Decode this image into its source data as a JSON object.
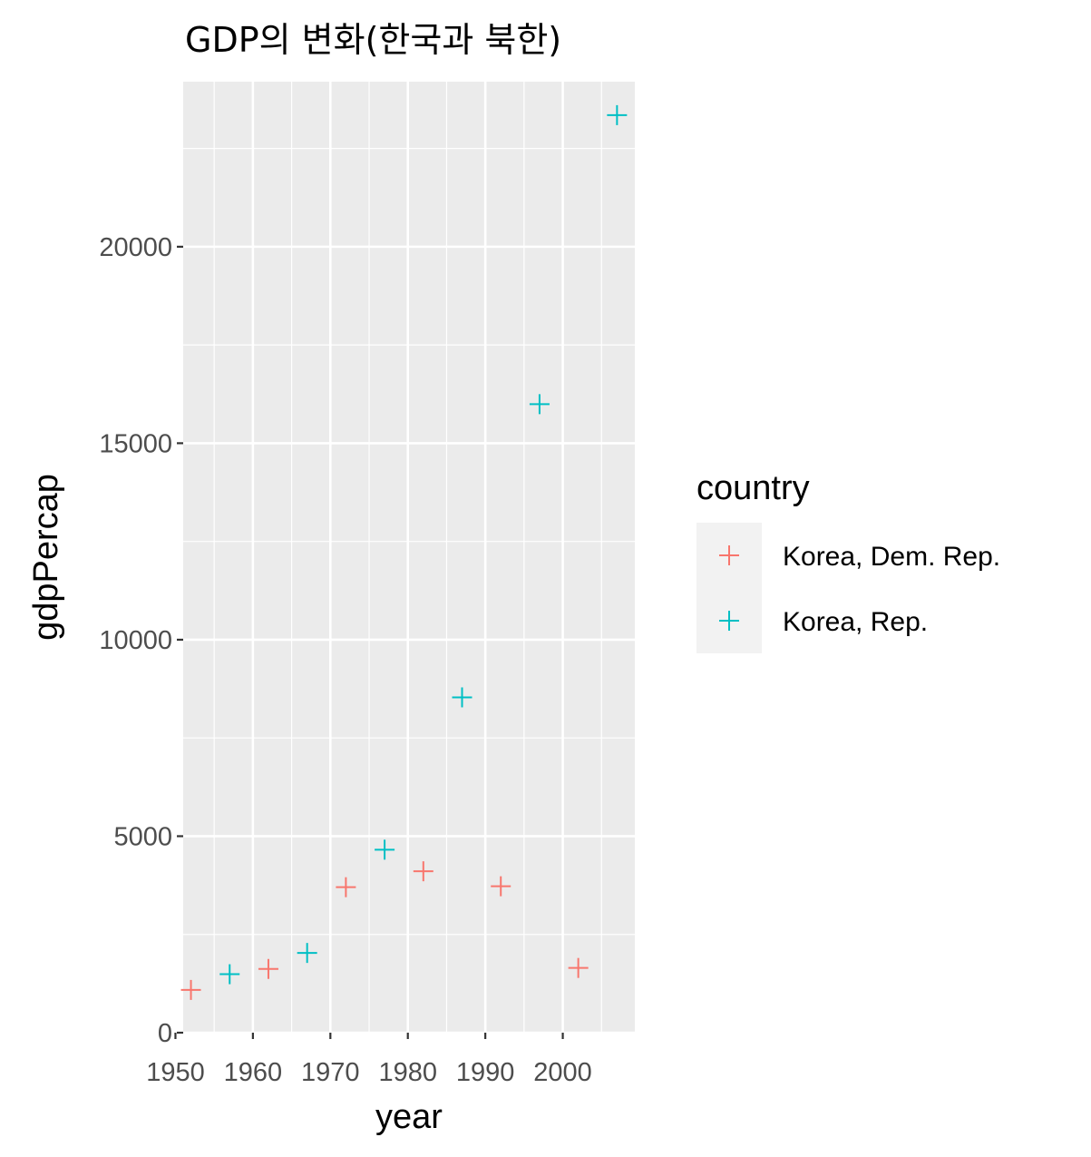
{
  "chart_data": {
    "type": "scatter",
    "title": "GDP의 변화(한국과 북한)",
    "xlabel": "year",
    "ylabel": "gdpPercap",
    "xlim": [
      1951,
      2009.3
    ],
    "ylim": [
      0,
      24200
    ],
    "x_ticks": [
      1950,
      1960,
      1970,
      1980,
      1990,
      2000
    ],
    "y_ticks": [
      0,
      5000,
      10000,
      15000,
      20000
    ],
    "x_tick_labels": [
      "1950",
      "1960",
      "1970",
      "1980",
      "1990",
      "2000"
    ],
    "y_tick_labels": [
      "0",
      "5000",
      "10000",
      "15000",
      "20000"
    ],
    "grid": true,
    "marker": "plus",
    "legend": {
      "title": "country",
      "position": "right"
    },
    "series": [
      {
        "name": "Korea, Dem. Rep.",
        "color": "#F8766D",
        "x": [
          1952,
          1962,
          1972,
          1982,
          1992,
          2002
        ],
        "y": [
          1088,
          1622,
          3702,
          4107,
          3726,
          1647
        ]
      },
      {
        "name": "Korea, Rep.",
        "color": "#00BFC4",
        "x": [
          1957,
          1967,
          1977,
          1987,
          1997,
          2007
        ],
        "y": [
          1488,
          2029,
          4657,
          8533,
          15994,
          23348
        ]
      }
    ]
  }
}
